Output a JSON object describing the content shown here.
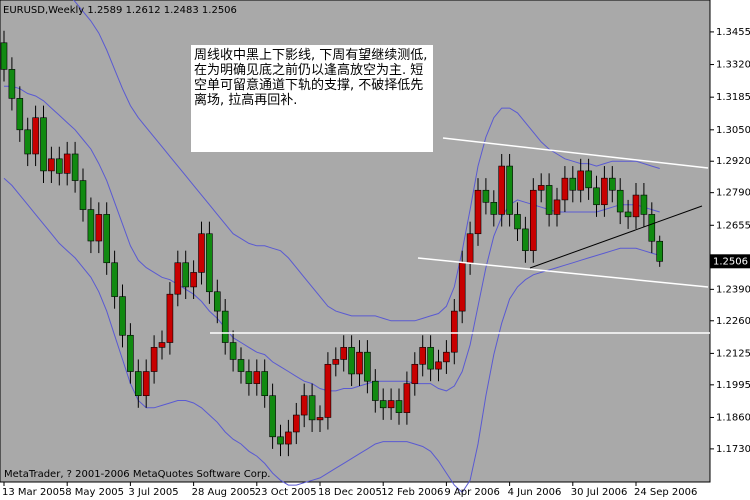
{
  "chart_data": {
    "type": "candlestick",
    "title": "EURUSD,Weekly  1.2589 1.2612 1.2483 1.2506",
    "annotation": "周线收中黑上下影线, 下周有望继续测低, 在为明确见底之前仍以逢高放空为主. 短空单可留意通道下轨的支撑, 不破择低先离场, 拉高再回补.",
    "footer": "MetaTrader, ? 2001-2006 MetaQuotes Software Corp.",
    "up_color": "#c80000",
    "down_color": "#118a11",
    "categories": [
      "13 Mar 2005",
      null,
      null,
      null,
      null,
      null,
      null,
      null,
      "8 May 2005",
      null,
      null,
      null,
      null,
      null,
      null,
      null,
      "3 Jul 2005",
      null,
      null,
      null,
      null,
      null,
      null,
      null,
      "28 Aug 2005",
      null,
      null,
      null,
      null,
      null,
      null,
      null,
      "23 Oct 2005",
      null,
      null,
      null,
      null,
      null,
      null,
      null,
      "18 Dec 2005",
      null,
      null,
      null,
      null,
      null,
      null,
      null,
      "12 Feb 2006",
      null,
      null,
      null,
      null,
      null,
      null,
      null,
      "9 Apr 2006",
      null,
      null,
      null,
      null,
      null,
      null,
      null,
      "4 Jun 2006",
      null,
      null,
      null,
      null,
      null,
      null,
      null,
      "30 Jul 2006",
      null,
      null,
      null,
      null,
      null,
      null,
      null,
      "24 Sep 2006",
      null,
      null,
      null
    ],
    "open": [
      1.341,
      1.33,
      1.318,
      1.305,
      1.295,
      1.31,
      1.288,
      1.293,
      1.287,
      1.295,
      1.284,
      1.272,
      1.259,
      1.27,
      1.25,
      1.236,
      1.22,
      1.205,
      1.195,
      1.205,
      1.215,
      1.217,
      1.237,
      1.25,
      1.24,
      1.246,
      1.262,
      1.238,
      1.23,
      1.217,
      1.21,
      1.205,
      1.2,
      1.205,
      1.195,
      1.178,
      1.175,
      1.18,
      1.187,
      1.195,
      1.185,
      1.186,
      1.208,
      1.21,
      1.215,
      1.204,
      1.213,
      1.201,
      1.193,
      1.19,
      1.193,
      1.188,
      1.2,
      1.208,
      1.215,
      1.206,
      1.209,
      1.213,
      1.23,
      1.25,
      1.262,
      1.28,
      1.275,
      1.27,
      1.29,
      1.27,
      1.264,
      1.255,
      1.28,
      1.282,
      1.27,
      1.276,
      1.285,
      1.28,
      1.288,
      1.281,
      1.274,
      1.285,
      1.28,
      1.271,
      1.269,
      1.278,
      1.27,
      1.2589
    ],
    "high": [
      1.346,
      1.335,
      1.323,
      1.31,
      1.315,
      1.315,
      1.298,
      1.298,
      1.3,
      1.3,
      1.289,
      1.277,
      1.275,
      1.275,
      1.255,
      1.241,
      1.225,
      1.21,
      1.21,
      1.22,
      1.222,
      1.242,
      1.255,
      1.255,
      1.251,
      1.267,
      1.267,
      1.243,
      1.235,
      1.222,
      1.215,
      1.21,
      1.21,
      1.21,
      1.2,
      1.183,
      1.185,
      1.192,
      1.2,
      1.2,
      1.191,
      1.213,
      1.215,
      1.22,
      1.22,
      1.218,
      1.218,
      1.206,
      1.198,
      1.198,
      1.198,
      1.205,
      1.213,
      1.22,
      1.22,
      1.214,
      1.218,
      1.235,
      1.255,
      1.267,
      1.285,
      1.285,
      1.28,
      1.295,
      1.295,
      1.275,
      1.269,
      1.285,
      1.287,
      1.287,
      1.281,
      1.29,
      1.29,
      1.293,
      1.293,
      1.286,
      1.29,
      1.29,
      1.285,
      1.276,
      1.283,
      1.283,
      1.275,
      1.2612
    ],
    "low": [
      1.325,
      1.313,
      1.3,
      1.29,
      1.29,
      1.283,
      1.283,
      1.282,
      1.282,
      1.279,
      1.267,
      1.254,
      1.254,
      1.245,
      1.231,
      1.215,
      1.2,
      1.19,
      1.19,
      1.2,
      1.21,
      1.212,
      1.232,
      1.235,
      1.235,
      1.241,
      1.233,
      1.225,
      1.212,
      1.205,
      1.2,
      1.195,
      1.195,
      1.19,
      1.173,
      1.17,
      1.17,
      1.175,
      1.182,
      1.18,
      1.18,
      1.181,
      1.203,
      1.205,
      1.199,
      1.199,
      1.196,
      1.188,
      1.185,
      1.185,
      1.183,
      1.183,
      1.195,
      1.203,
      1.201,
      1.201,
      1.204,
      1.208,
      1.225,
      1.245,
      1.257,
      1.27,
      1.265,
      1.265,
      1.265,
      1.259,
      1.25,
      1.25,
      1.275,
      1.265,
      1.265,
      1.271,
      1.275,
      1.275,
      1.276,
      1.269,
      1.269,
      1.275,
      1.266,
      1.264,
      1.264,
      1.265,
      1.254,
      1.2483
    ],
    "close": [
      1.33,
      1.318,
      1.305,
      1.295,
      1.31,
      1.288,
      1.293,
      1.287,
      1.295,
      1.284,
      1.272,
      1.259,
      1.27,
      1.25,
      1.236,
      1.22,
      1.205,
      1.195,
      1.205,
      1.215,
      1.217,
      1.237,
      1.25,
      1.24,
      1.246,
      1.262,
      1.238,
      1.23,
      1.217,
      1.21,
      1.205,
      1.2,
      1.205,
      1.195,
      1.178,
      1.175,
      1.18,
      1.187,
      1.195,
      1.185,
      1.186,
      1.208,
      1.21,
      1.215,
      1.204,
      1.213,
      1.201,
      1.193,
      1.19,
      1.193,
      1.188,
      1.2,
      1.208,
      1.215,
      1.206,
      1.209,
      1.213,
      1.23,
      1.25,
      1.262,
      1.28,
      1.275,
      1.27,
      1.29,
      1.27,
      1.264,
      1.255,
      1.28,
      1.282,
      1.27,
      1.276,
      1.285,
      1.28,
      1.288,
      1.281,
      1.274,
      1.285,
      1.28,
      1.271,
      1.269,
      1.278,
      1.27,
      1.2589,
      1.2506
    ],
    "bands": {
      "color": "#5a5ad2",
      "upper": [
        1.362,
        1.364,
        1.366,
        1.367,
        1.368,
        1.368,
        1.367,
        1.365,
        1.362,
        1.358,
        1.354,
        1.35,
        1.345,
        1.338,
        1.33,
        1.322,
        1.315,
        1.31,
        1.306,
        1.302,
        1.298,
        1.294,
        1.29,
        1.286,
        1.282,
        1.278,
        1.274,
        1.27,
        1.266,
        1.262,
        1.26,
        1.258,
        1.257,
        1.257,
        1.256,
        1.255,
        1.252,
        1.248,
        1.244,
        1.24,
        1.236,
        1.232,
        1.23,
        1.229,
        1.228,
        1.228,
        1.228,
        1.228,
        1.227,
        1.226,
        1.226,
        1.226,
        1.226,
        1.227,
        1.228,
        1.229,
        1.232,
        1.24,
        1.255,
        1.272,
        1.29,
        1.302,
        1.31,
        1.314,
        1.314,
        1.312,
        1.308,
        1.304,
        1.3,
        1.297,
        1.295,
        1.293,
        1.292,
        1.291,
        1.291,
        1.29,
        1.291,
        1.292,
        1.292,
        1.292,
        1.292,
        1.291,
        1.29,
        1.289
      ],
      "middle": [
        1.323,
        1.323,
        1.322,
        1.32,
        1.319,
        1.317,
        1.314,
        1.311,
        1.308,
        1.305,
        1.301,
        1.297,
        1.291,
        1.284,
        1.275,
        1.266,
        1.257,
        1.251,
        1.248,
        1.246,
        1.244,
        1.243,
        1.241,
        1.239,
        1.237,
        1.234,
        1.23,
        1.227,
        1.223,
        1.219,
        1.217,
        1.215,
        1.213,
        1.212,
        1.209,
        1.207,
        1.205,
        1.203,
        1.201,
        1.2,
        1.198,
        1.197,
        1.197,
        1.198,
        1.198,
        1.199,
        1.2,
        1.201,
        1.201,
        1.201,
        1.201,
        1.201,
        1.2,
        1.2,
        1.2,
        1.198,
        1.197,
        1.199,
        1.205,
        1.216,
        1.232,
        1.248,
        1.261,
        1.269,
        1.274,
        1.276,
        1.275,
        1.274,
        1.273,
        1.272,
        1.271,
        1.271,
        1.271,
        1.271,
        1.271,
        1.271,
        1.272,
        1.273,
        1.274,
        1.274,
        1.274,
        1.273,
        1.272,
        1.271
      ],
      "lower": [
        1.285,
        1.282,
        1.278,
        1.274,
        1.27,
        1.266,
        1.262,
        1.258,
        1.255,
        1.252,
        1.248,
        1.244,
        1.238,
        1.23,
        1.22,
        1.21,
        1.2,
        1.193,
        1.19,
        1.19,
        1.191,
        1.192,
        1.193,
        1.193,
        1.192,
        1.19,
        1.187,
        1.184,
        1.18,
        1.177,
        1.175,
        1.172,
        1.17,
        1.167,
        1.163,
        1.16,
        1.158,
        1.158,
        1.159,
        1.16,
        1.161,
        1.163,
        1.165,
        1.167,
        1.169,
        1.171,
        1.173,
        1.175,
        1.176,
        1.176,
        1.176,
        1.176,
        1.175,
        1.174,
        1.172,
        1.168,
        1.163,
        1.158,
        1.155,
        1.16,
        1.175,
        1.195,
        1.212,
        1.225,
        1.235,
        1.24,
        1.243,
        1.245,
        1.246,
        1.247,
        1.248,
        1.249,
        1.25,
        1.251,
        1.252,
        1.253,
        1.254,
        1.255,
        1.256,
        1.256,
        1.256,
        1.255,
        1.254,
        1.253
      ]
    },
    "last_price": 1.2506,
    "ylim": [
      1.1593,
      1.3587
    ],
    "yticks": [
      1.3455,
      {
        "value": 1.332,
        "label": "1.3320"
      },
      1.3185,
      {
        "value": 1.305,
        "label": "1.3050"
      },
      {
        "value": 1.292,
        "label": "1.2920"
      },
      {
        "value": 1.279,
        "label": "1.2790"
      },
      1.2655,
      {
        "value": 1.239,
        "label": "1.2390"
      },
      {
        "value": 1.226,
        "label": "1.2260"
      },
      1.2125,
      1.1995,
      {
        "value": 1.186,
        "label": "1.1860"
      },
      {
        "value": 1.173,
        "label": "1.1730"
      }
    ]
  }
}
